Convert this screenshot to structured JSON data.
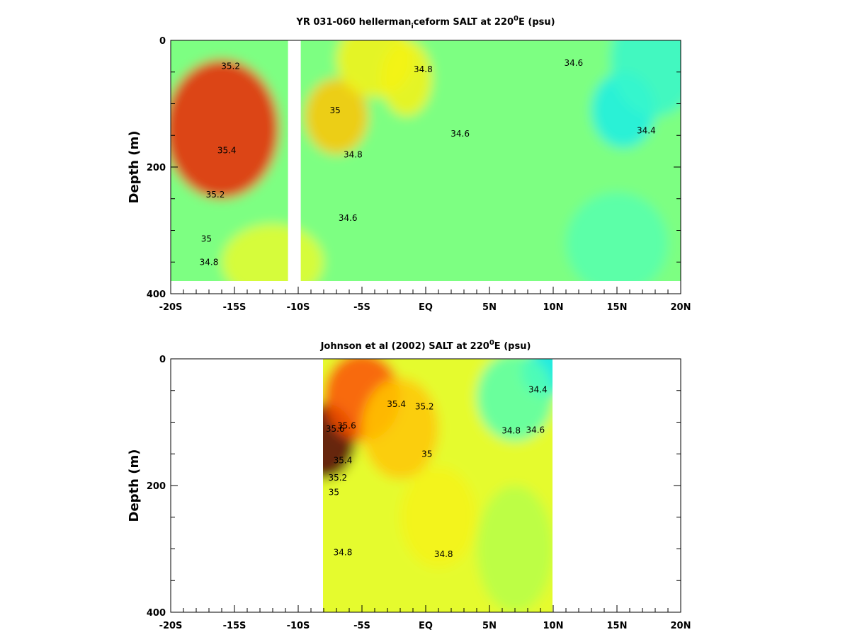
{
  "chart_data": [
    {
      "type": "heatmap",
      "title_parts": [
        "YR 031-060 hellerman",
        "i",
        "ceform SALT at 220",
        "0",
        "E (psu)"
      ],
      "ylabel": "Depth (m)",
      "x_ticks": [
        -20,
        -15,
        -10,
        -5,
        0,
        5,
        10,
        15,
        20
      ],
      "x_tick_labels": [
        "-20S",
        "-15S",
        "-10S",
        "-5S",
        "EQ",
        "5N",
        "10N",
        "15N",
        "20N"
      ],
      "y_ticks": [
        0,
        200,
        400
      ],
      "y_tick_labels": [
        "0",
        "200",
        "400"
      ],
      "xlim": [
        -20,
        20
      ],
      "ylim": [
        400,
        0
      ],
      "data_x_range": [
        -20,
        20
      ],
      "data_depth_max": 380,
      "gap_x_range": [
        -10.8,
        -9.8
      ],
      "salinity_range": [
        34.2,
        35.8
      ],
      "contour_labels": [
        {
          "text": "35.2",
          "x": -15.3,
          "depth": 45
        },
        {
          "text": "35.4",
          "x": -15.6,
          "depth": 178
        },
        {
          "text": "35.2",
          "x": -16.5,
          "depth": 248
        },
        {
          "text": "35",
          "x": -17.2,
          "depth": 318
        },
        {
          "text": "34.8",
          "x": -17.0,
          "depth": 355
        },
        {
          "text": "35",
          "x": -7.1,
          "depth": 115
        },
        {
          "text": "34.8",
          "x": -5.7,
          "depth": 185
        },
        {
          "text": "34.6",
          "x": -6.1,
          "depth": 285
        },
        {
          "text": "34.8",
          "x": -0.2,
          "depth": 50
        },
        {
          "text": "34.6",
          "x": 2.7,
          "depth": 152
        },
        {
          "text": "34.6",
          "x": 11.6,
          "depth": 40
        },
        {
          "text": "34.4",
          "x": 17.3,
          "depth": 147
        }
      ],
      "blobs": [
        {
          "x": -16,
          "depth": 140,
          "value": 35.6,
          "sx": 4.5,
          "sy": 110
        },
        {
          "x": -7,
          "depth": 120,
          "value": 35.2,
          "sx": 2.5,
          "sy": 60
        },
        {
          "x": -1.5,
          "depth": 60,
          "value": 35.0,
          "sx": 2.0,
          "sy": 60
        },
        {
          "x": -4,
          "depth": 30,
          "value": 35.0,
          "sx": 3.0,
          "sy": 60
        },
        {
          "x": 15.5,
          "depth": 110,
          "value": 34.3,
          "sx": 2.5,
          "sy": 60
        },
        {
          "x": 18,
          "depth": 30,
          "value": 34.4,
          "sx": 3.5,
          "sy": 90
        },
        {
          "x": 15,
          "depth": 320,
          "value": 34.5,
          "sx": 4.0,
          "sy": 80
        },
        {
          "x": -12,
          "depth": 350,
          "value": 34.9,
          "sx": 4.0,
          "sy": 60
        }
      ]
    },
    {
      "type": "heatmap",
      "title_parts": [
        "Johnson et al (2002) SALT at 220",
        "0",
        "E (psu)"
      ],
      "ylabel": "Depth (m)",
      "x_ticks": [
        -20,
        -15,
        -10,
        -5,
        0,
        5,
        10,
        15,
        20
      ],
      "x_tick_labels": [
        "-20S",
        "-15S",
        "-10S",
        "-5S",
        "EQ",
        "5N",
        "10N",
        "15N",
        "20N"
      ],
      "y_ticks": [
        0,
        200,
        400
      ],
      "y_tick_labels": [
        "0",
        "200",
        "400"
      ],
      "xlim": [
        -20,
        20
      ],
      "ylim": [
        400,
        0
      ],
      "data_x_range": [
        -8,
        10
      ],
      "data_depth_max": 400,
      "salinity_range": [
        34.2,
        35.8
      ],
      "contour_labels": [
        {
          "text": "35.4",
          "x": -2.3,
          "depth": 76
        },
        {
          "text": "35.2",
          "x": -0.1,
          "depth": 80
        },
        {
          "text": "35.6",
          "x": -6.2,
          "depth": 110
        },
        {
          "text": "35.6",
          "x": -7.1,
          "depth": 115
        },
        {
          "text": "35",
          "x": 0.1,
          "depth": 155
        },
        {
          "text": "35.4",
          "x": -6.5,
          "depth": 165
        },
        {
          "text": "35.2",
          "x": -6.9,
          "depth": 192
        },
        {
          "text": "35",
          "x": -7.2,
          "depth": 215
        },
        {
          "text": "34.8",
          "x": -6.5,
          "depth": 310
        },
        {
          "text": "34.8",
          "x": 1.4,
          "depth": 313
        },
        {
          "text": "34.4",
          "x": 8.8,
          "depth": 53
        },
        {
          "text": "34.8",
          "x": 6.7,
          "depth": 118
        },
        {
          "text": "34.6",
          "x": 8.6,
          "depth": 117
        }
      ],
      "blobs": [
        {
          "x": -8,
          "depth": 130,
          "value": 35.8,
          "sx": 2.5,
          "sy": 60
        },
        {
          "x": -5,
          "depth": 60,
          "value": 35.5,
          "sx": 3.0,
          "sy": 70
        },
        {
          "x": -2,
          "depth": 110,
          "value": 35.2,
          "sx": 3.0,
          "sy": 80
        },
        {
          "x": 9.5,
          "depth": 20,
          "value": 34.2,
          "sx": 2.0,
          "sy": 40
        },
        {
          "x": 7,
          "depth": 60,
          "value": 34.5,
          "sx": 3.0,
          "sy": 70
        },
        {
          "x": 1,
          "depth": 250,
          "value": 35.0,
          "sx": 3.0,
          "sy": 80
        },
        {
          "x": 7,
          "depth": 300,
          "value": 34.75,
          "sx": 3.0,
          "sy": 100
        }
      ]
    }
  ]
}
